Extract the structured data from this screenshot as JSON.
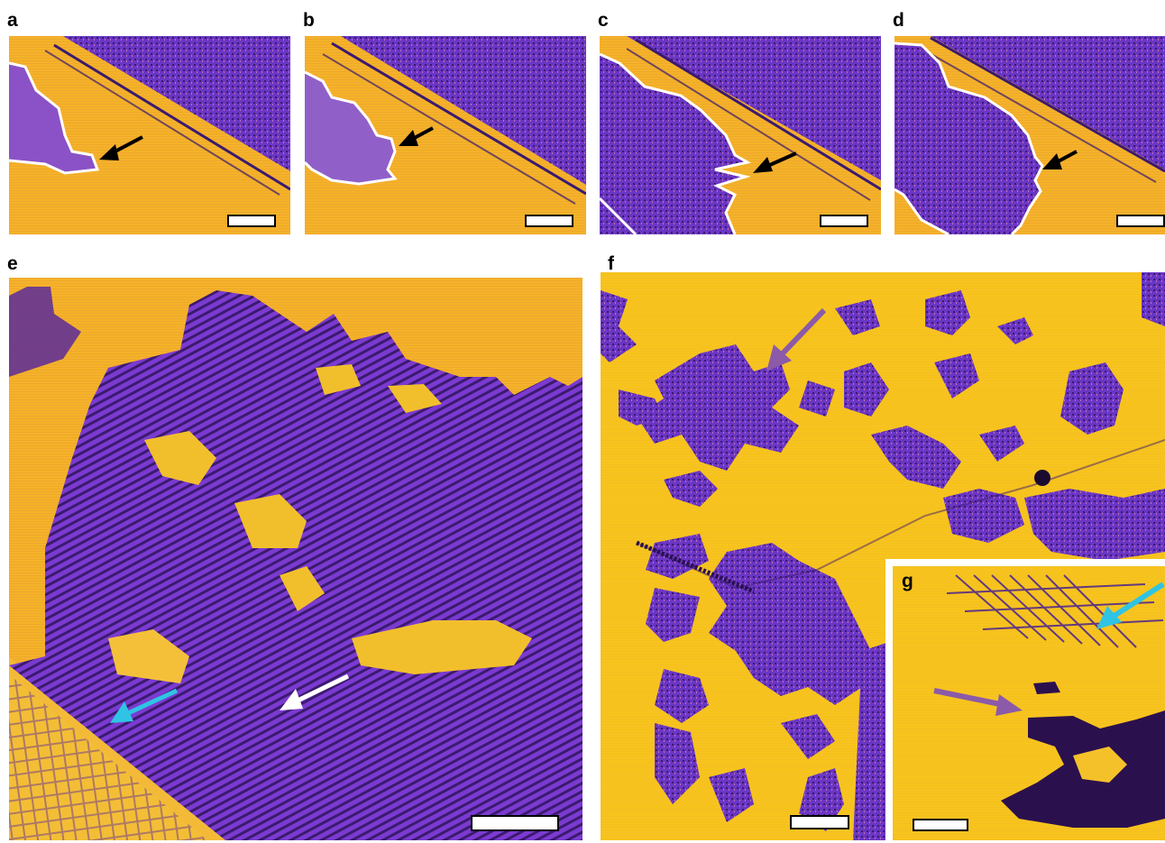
{
  "figure": {
    "panels": [
      {
        "label": "a"
      },
      {
        "label": "b"
      },
      {
        "label": "c"
      },
      {
        "label": "d"
      },
      {
        "label": "e"
      },
      {
        "label": "f"
      },
      {
        "label": "g"
      }
    ]
  },
  "colors": {
    "substrate_yellow": "#f7c51e",
    "substrate_orange": "#f2a92a",
    "film_purple": "#7b3ad0",
    "film_dark": "#3b1a6e",
    "boundary_white": "#ffffff",
    "arrow_black": "#000000",
    "arrow_white": "#ffffff",
    "arrow_cyan": "#2fc4e4",
    "arrow_purple": "#8b5aa8"
  },
  "icons": {
    "arrow": "arrow-icon",
    "scale_bar": "scale-bar-icon"
  }
}
